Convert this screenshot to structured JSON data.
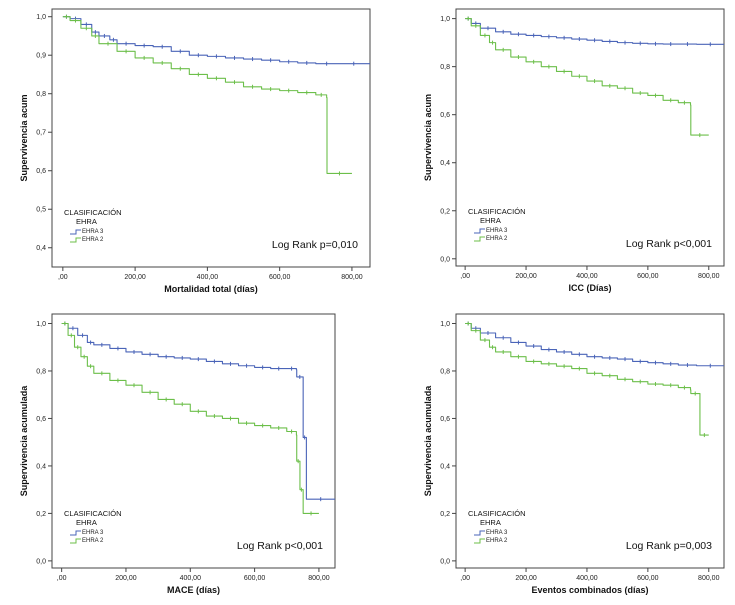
{
  "colors": {
    "ehra3": "#4a64b8",
    "ehra2": "#6cbf4a",
    "axis": "#444444"
  },
  "chart_data": [
    {
      "type": "line",
      "subtype": "kaplan-meier",
      "xlabel": "Mortalidad total (días)",
      "ylabel": "Supervivencia acum",
      "xlim": [
        -30,
        850
      ],
      "ylim": [
        0.35,
        1.02
      ],
      "xticks": [
        0,
        200,
        400,
        600,
        800
      ],
      "xtick_labels": [
        ",00",
        "200,00",
        "400,00",
        "600,00",
        "800,00"
      ],
      "yticks": [
        0.4,
        0.5,
        0.6,
        0.7,
        0.8,
        0.9,
        1.0
      ],
      "ytick_labels": [
        "0,4",
        "0,5",
        "0,6",
        "0,7",
        "0,8",
        "0,9",
        "1,0"
      ],
      "legend_title": [
        "CLASIFICACIÓN",
        "EHRA"
      ],
      "annotation": "Log Rank p=0,010",
      "series": [
        {
          "name": "EHRA 3",
          "color_key": "ehra3",
          "x": [
            0,
            20,
            50,
            80,
            100,
            130,
            150,
            200,
            250,
            300,
            350,
            400,
            450,
            500,
            550,
            600,
            650,
            700,
            760,
            850
          ],
          "y": [
            1.0,
            0.995,
            0.98,
            0.96,
            0.95,
            0.94,
            0.93,
            0.925,
            0.922,
            0.91,
            0.9,
            0.897,
            0.893,
            0.89,
            0.887,
            0.883,
            0.88,
            0.878,
            0.878,
            0.878
          ]
        },
        {
          "name": "EHRA 2",
          "color_key": "ehra2",
          "x": [
            0,
            20,
            50,
            80,
            100,
            150,
            200,
            250,
            300,
            350,
            400,
            450,
            500,
            550,
            600,
            650,
            700,
            730,
            731,
            800
          ],
          "y": [
            1.0,
            0.99,
            0.97,
            0.95,
            0.93,
            0.91,
            0.893,
            0.88,
            0.865,
            0.85,
            0.84,
            0.83,
            0.818,
            0.812,
            0.808,
            0.803,
            0.797,
            0.79,
            0.593,
            0.593
          ]
        }
      ]
    },
    {
      "type": "line",
      "subtype": "kaplan-meier",
      "xlabel": "ICC (Días)",
      "ylabel": "Supervivencia acum",
      "xlim": [
        -30,
        850
      ],
      "ylim": [
        -0.03,
        1.04
      ],
      "xticks": [
        0,
        200,
        400,
        600,
        800
      ],
      "xtick_labels": [
        ",00",
        "200,00",
        "400,00",
        "600,00",
        "800,00"
      ],
      "yticks": [
        0.0,
        0.2,
        0.4,
        0.6,
        0.8,
        1.0
      ],
      "ytick_labels": [
        "0,0",
        "0,2",
        "0,4",
        "0,6",
        "0,8",
        "1,0"
      ],
      "legend_title": [
        "CLASIFICACIÓN",
        "EHRA"
      ],
      "annotation": "Log Rank p<0,001",
      "series": [
        {
          "name": "EHRA 3",
          "color_key": "ehra3",
          "x": [
            0,
            20,
            50,
            100,
            150,
            200,
            250,
            300,
            350,
            400,
            450,
            500,
            550,
            600,
            650,
            700,
            760,
            850
          ],
          "y": [
            1.0,
            0.98,
            0.96,
            0.945,
            0.935,
            0.93,
            0.925,
            0.92,
            0.915,
            0.91,
            0.905,
            0.9,
            0.897,
            0.895,
            0.894,
            0.894,
            0.893,
            0.893
          ]
        },
        {
          "name": "EHRA 2",
          "color_key": "ehra2",
          "x": [
            0,
            20,
            50,
            80,
            100,
            150,
            200,
            250,
            300,
            350,
            400,
            450,
            500,
            550,
            600,
            650,
            700,
            740,
            741,
            800
          ],
          "y": [
            1.0,
            0.97,
            0.93,
            0.9,
            0.87,
            0.84,
            0.82,
            0.8,
            0.78,
            0.76,
            0.74,
            0.72,
            0.71,
            0.69,
            0.68,
            0.66,
            0.65,
            0.64,
            0.515,
            0.515
          ]
        }
      ]
    },
    {
      "type": "line",
      "subtype": "kaplan-meier",
      "xlabel": "MACE (días)",
      "ylabel": "Supervivencia acumulada",
      "xlim": [
        -30,
        850
      ],
      "ylim": [
        -0.03,
        1.04
      ],
      "xticks": [
        0,
        200,
        400,
        600,
        800
      ],
      "xtick_labels": [
        ",00",
        "200,00",
        "400,00",
        "600,00",
        "800,00"
      ],
      "yticks": [
        0.0,
        0.2,
        0.4,
        0.6,
        0.8,
        1.0
      ],
      "ytick_labels": [
        "0,0",
        "0,2",
        "0,4",
        "0,6",
        "0,8",
        "1,0"
      ],
      "legend_title": [
        "CLASIFICACIÓN",
        "EHRA"
      ],
      "annotation": "Log Rank p<0,001",
      "series": [
        {
          "name": "EHRA 3",
          "color_key": "ehra3",
          "x": [
            0,
            20,
            50,
            80,
            100,
            150,
            200,
            250,
            300,
            350,
            400,
            450,
            500,
            550,
            600,
            650,
            700,
            730,
            731,
            750,
            751,
            760,
            761,
            850
          ],
          "y": [
            1.0,
            0.98,
            0.95,
            0.92,
            0.91,
            0.895,
            0.88,
            0.87,
            0.86,
            0.855,
            0.85,
            0.84,
            0.83,
            0.822,
            0.815,
            0.81,
            0.81,
            0.805,
            0.775,
            0.775,
            0.52,
            0.52,
            0.26,
            0.26
          ]
        },
        {
          "name": "EHRA 2",
          "color_key": "ehra2",
          "x": [
            0,
            20,
            40,
            60,
            80,
            100,
            150,
            200,
            250,
            300,
            350,
            400,
            450,
            500,
            550,
            600,
            650,
            700,
            730,
            731,
            740,
            741,
            750,
            751,
            800
          ],
          "y": [
            1.0,
            0.95,
            0.9,
            0.86,
            0.82,
            0.79,
            0.76,
            0.74,
            0.71,
            0.68,
            0.66,
            0.63,
            0.61,
            0.6,
            0.58,
            0.57,
            0.56,
            0.545,
            0.53,
            0.42,
            0.42,
            0.3,
            0.3,
            0.2,
            0.2
          ]
        }
      ]
    },
    {
      "type": "line",
      "subtype": "kaplan-meier",
      "xlabel": "Eventos combinados (días)",
      "ylabel": "Supervivencia acumulada",
      "xlim": [
        -30,
        850
      ],
      "ylim": [
        -0.03,
        1.04
      ],
      "xticks": [
        0,
        200,
        400,
        600,
        800
      ],
      "xtick_labels": [
        ",00",
        "200,00",
        "400,00",
        "600,00",
        "800,00"
      ],
      "yticks": [
        0.0,
        0.2,
        0.4,
        0.6,
        0.8,
        1.0
      ],
      "ytick_labels": [
        "0,0",
        "0,2",
        "0,4",
        "0,6",
        "0,8",
        "1,0"
      ],
      "legend_title": [
        "CLASIFICACIÓN",
        "EHRA"
      ],
      "annotation": "Log Rank p=0,003",
      "series": [
        {
          "name": "EHRA 3",
          "color_key": "ehra3",
          "x": [
            0,
            20,
            50,
            100,
            150,
            200,
            250,
            300,
            350,
            400,
            450,
            500,
            550,
            600,
            650,
            700,
            760,
            850
          ],
          "y": [
            1.0,
            0.98,
            0.96,
            0.94,
            0.92,
            0.905,
            0.89,
            0.88,
            0.87,
            0.86,
            0.855,
            0.85,
            0.84,
            0.835,
            0.83,
            0.825,
            0.822,
            0.822
          ]
        },
        {
          "name": "EHRA 2",
          "color_key": "ehra2",
          "x": [
            0,
            20,
            50,
            80,
            100,
            150,
            200,
            250,
            300,
            350,
            400,
            450,
            500,
            550,
            600,
            650,
            700,
            740,
            741,
            770,
            771,
            800
          ],
          "y": [
            1.0,
            0.97,
            0.93,
            0.9,
            0.88,
            0.86,
            0.84,
            0.83,
            0.82,
            0.81,
            0.79,
            0.78,
            0.765,
            0.755,
            0.745,
            0.74,
            0.73,
            0.72,
            0.705,
            0.705,
            0.53,
            0.53
          ]
        }
      ]
    }
  ]
}
